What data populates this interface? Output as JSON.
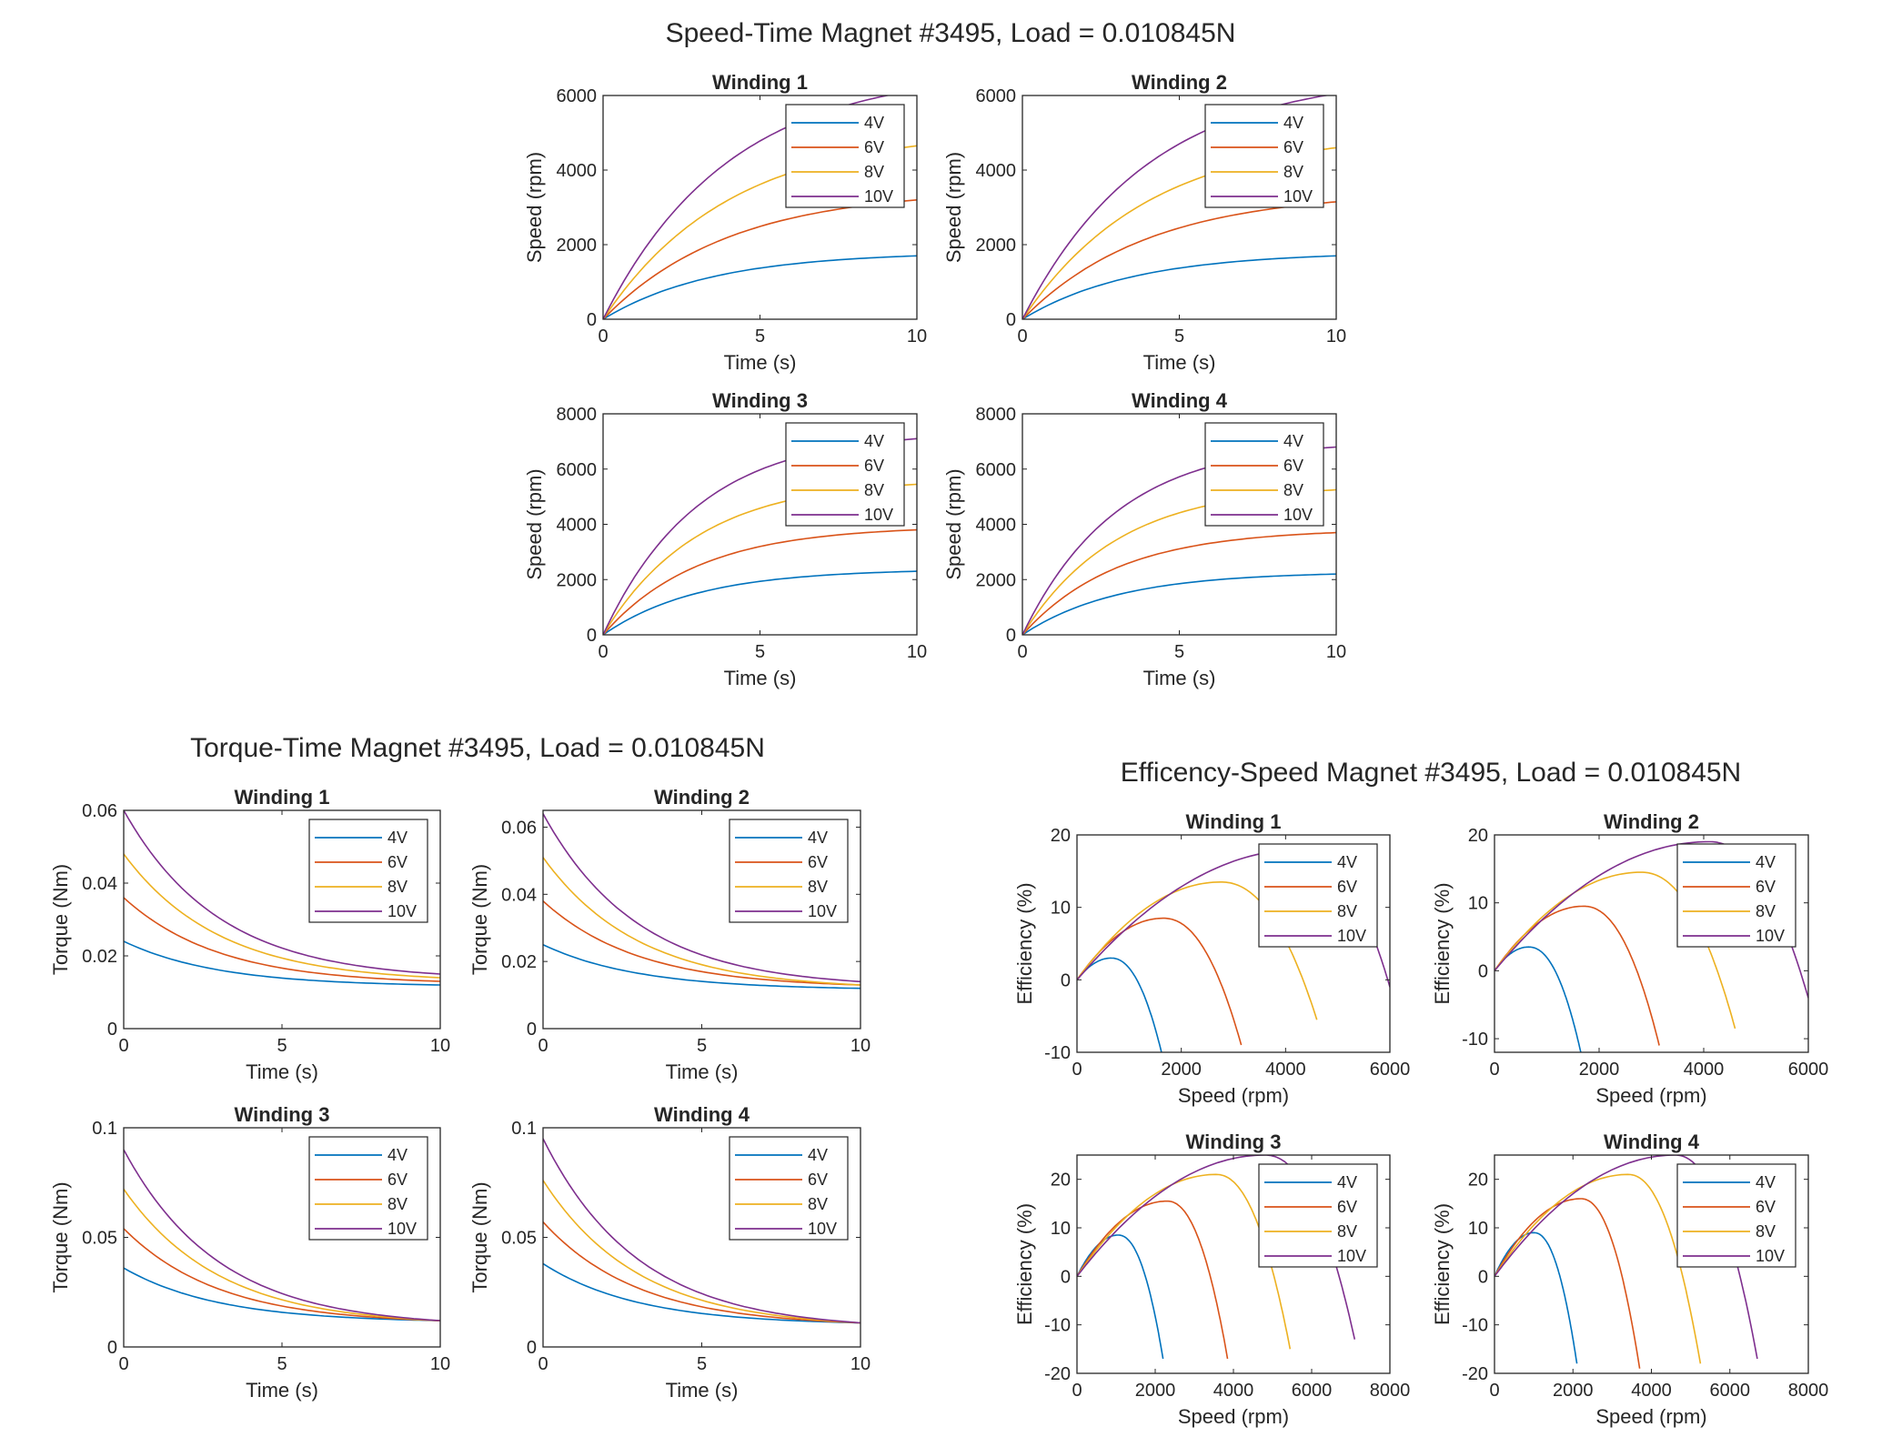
{
  "colors": {
    "4V": "#0072BD",
    "6V": "#D95319",
    "8V": "#EDB120",
    "10V": "#7E2F8E"
  },
  "legend_labels": [
    "4V",
    "6V",
    "8V",
    "10V"
  ],
  "figures": [
    {
      "title": "Speed-Time Magnet #3495, Load = 0.010845N",
      "kind": "speed_time",
      "xlabel": "Time (s)",
      "ylabel": "Speed (rpm)",
      "panels": [
        {
          "title": "Winding 1",
          "xlim": [
            0,
            10
          ],
          "ylim": [
            0,
            6000
          ],
          "xticks": [
            "0",
            "5",
            "10"
          ],
          "yticks": [
            "0",
            "2000",
            "4000",
            "6000"
          ],
          "series": [
            {
              "name": "4V",
              "final_rpm": 1700,
              "tau_s": 3.5
            },
            {
              "name": "6V",
              "final_rpm": 3200,
              "tau_s": 4.0
            },
            {
              "name": "8V",
              "final_rpm": 4650,
              "tau_s": 4.0
            },
            {
              "name": "10V",
              "final_rpm": 6150,
              "tau_s": 4.0
            }
          ]
        },
        {
          "title": "Winding 2",
          "xlim": [
            0,
            10
          ],
          "ylim": [
            0,
            6000
          ],
          "xticks": [
            "0",
            "5",
            "10"
          ],
          "yticks": [
            "0",
            "2000",
            "4000",
            "6000"
          ],
          "series": [
            {
              "name": "4V",
              "final_rpm": 1700,
              "tau_s": 3.5
            },
            {
              "name": "6V",
              "final_rpm": 3150,
              "tau_s": 4.0
            },
            {
              "name": "8V",
              "final_rpm": 4600,
              "tau_s": 4.0
            },
            {
              "name": "10V",
              "final_rpm": 6050,
              "tau_s": 4.0
            }
          ]
        },
        {
          "title": "Winding 3",
          "xlim": [
            0,
            10
          ],
          "ylim": [
            0,
            8000
          ],
          "xticks": [
            "0",
            "5",
            "10"
          ],
          "yticks": [
            "0",
            "2000",
            "4000",
            "6000",
            "8000"
          ],
          "series": [
            {
              "name": "4V",
              "final_rpm": 2300,
              "tau_s": 3.0
            },
            {
              "name": "6V",
              "final_rpm": 3800,
              "tau_s": 3.0
            },
            {
              "name": "8V",
              "final_rpm": 5450,
              "tau_s": 3.0
            },
            {
              "name": "10V",
              "final_rpm": 7100,
              "tau_s": 3.0
            }
          ]
        },
        {
          "title": "Winding 4",
          "xlim": [
            0,
            10
          ],
          "ylim": [
            0,
            8000
          ],
          "xticks": [
            "0",
            "5",
            "10"
          ],
          "yticks": [
            "0",
            "2000",
            "4000",
            "6000",
            "8000"
          ],
          "series": [
            {
              "name": "4V",
              "final_rpm": 2200,
              "tau_s": 3.0
            },
            {
              "name": "6V",
              "final_rpm": 3700,
              "tau_s": 3.0
            },
            {
              "name": "8V",
              "final_rpm": 5250,
              "tau_s": 3.0
            },
            {
              "name": "10V",
              "final_rpm": 6800,
              "tau_s": 3.0
            }
          ]
        }
      ]
    },
    {
      "title": "Torque-Time Magnet #3495, Load = 0.010845N",
      "kind": "torque_time",
      "xlabel": "Time (s)",
      "ylabel": "Torque (Nm)",
      "panels": [
        {
          "title": "Winding 1",
          "xlim": [
            0,
            10
          ],
          "ylim": [
            0,
            0.06
          ],
          "xticks": [
            "0",
            "5",
            "10"
          ],
          "yticks": [
            "0",
            "0.02",
            "0.04",
            "0.06"
          ],
          "series": [
            {
              "name": "4V",
              "t0_nm": 0.024,
              "t10_nm": 0.012
            },
            {
              "name": "6V",
              "t0_nm": 0.036,
              "t10_nm": 0.013
            },
            {
              "name": "8V",
              "t0_nm": 0.048,
              "t10_nm": 0.014
            },
            {
              "name": "10V",
              "t0_nm": 0.06,
              "t10_nm": 0.015
            }
          ]
        },
        {
          "title": "Winding 2",
          "xlim": [
            0,
            10
          ],
          "ylim": [
            0,
            0.065
          ],
          "xticks": [
            "0",
            "5",
            "10"
          ],
          "yticks": [
            "0",
            "0.02",
            "0.04",
            "0.06"
          ],
          "series": [
            {
              "name": "4V",
              "t0_nm": 0.025,
              "t10_nm": 0.012
            },
            {
              "name": "6V",
              "t0_nm": 0.038,
              "t10_nm": 0.013
            },
            {
              "name": "8V",
              "t0_nm": 0.051,
              "t10_nm": 0.013
            },
            {
              "name": "10V",
              "t0_nm": 0.064,
              "t10_nm": 0.014
            }
          ]
        },
        {
          "title": "Winding 3",
          "xlim": [
            0,
            10
          ],
          "ylim": [
            0,
            0.1
          ],
          "xticks": [
            "0",
            "5",
            "10"
          ],
          "yticks": [
            "0",
            "0.05",
            "0.1"
          ],
          "series": [
            {
              "name": "4V",
              "t0_nm": 0.036,
              "t10_nm": 0.012
            },
            {
              "name": "6V",
              "t0_nm": 0.054,
              "t10_nm": 0.012
            },
            {
              "name": "8V",
              "t0_nm": 0.072,
              "t10_nm": 0.012
            },
            {
              "name": "10V",
              "t0_nm": 0.09,
              "t10_nm": 0.012
            }
          ]
        },
        {
          "title": "Winding 4",
          "xlim": [
            0,
            10
          ],
          "ylim": [
            0,
            0.1
          ],
          "xticks": [
            "0",
            "5",
            "10"
          ],
          "yticks": [
            "0",
            "0.05",
            "0.1"
          ],
          "series": [
            {
              "name": "4V",
              "t0_nm": 0.038,
              "t10_nm": 0.011
            },
            {
              "name": "6V",
              "t0_nm": 0.057,
              "t10_nm": 0.011
            },
            {
              "name": "8V",
              "t0_nm": 0.076,
              "t10_nm": 0.011
            },
            {
              "name": "10V",
              "t0_nm": 0.095,
              "t10_nm": 0.011
            }
          ]
        }
      ]
    },
    {
      "title": "Efficency-Speed Magnet #3495, Load = 0.010845N",
      "kind": "efficiency_speed",
      "xlabel": "Speed (rpm)",
      "ylabel": "Efficiency (%)",
      "panels": [
        {
          "title": "Winding 1",
          "xlim": [
            0,
            6000
          ],
          "ylim": [
            -10,
            20
          ],
          "xticks": [
            "0",
            "2000",
            "4000",
            "6000"
          ],
          "yticks": [
            "-10",
            "0",
            "10",
            "20"
          ],
          "series": [
            {
              "name": "4V",
              "peak_rpm": 650,
              "peak_eff": 3,
              "end_rpm": 1620,
              "end_eff": -10
            },
            {
              "name": "6V",
              "peak_rpm": 1650,
              "peak_eff": 8.5,
              "end_rpm": 3150,
              "end_eff": -9
            },
            {
              "name": "8V",
              "peak_rpm": 2750,
              "peak_eff": 13.5,
              "end_rpm": 4600,
              "end_eff": -5.5
            },
            {
              "name": "10V",
              "peak_rpm": 4300,
              "peak_eff": 18,
              "end_rpm": 6000,
              "end_eff": -1
            }
          ]
        },
        {
          "title": "Winding 2",
          "xlim": [
            0,
            6000
          ],
          "ylim": [
            -12,
            20
          ],
          "xticks": [
            "0",
            "2000",
            "4000",
            "6000"
          ],
          "yticks": [
            "-10",
            "0",
            "10",
            "20"
          ],
          "series": [
            {
              "name": "4V",
              "peak_rpm": 650,
              "peak_eff": 3.5,
              "end_rpm": 1650,
              "end_eff": -12
            },
            {
              "name": "6V",
              "peak_rpm": 1700,
              "peak_eff": 9.5,
              "end_rpm": 3150,
              "end_eff": -11
            },
            {
              "name": "8V",
              "peak_rpm": 2800,
              "peak_eff": 14.5,
              "end_rpm": 4600,
              "end_eff": -8.5
            },
            {
              "name": "10V",
              "peak_rpm": 4100,
              "peak_eff": 19,
              "end_rpm": 6000,
              "end_eff": -4
            }
          ]
        },
        {
          "title": "Winding 3",
          "xlim": [
            0,
            8000
          ],
          "ylim": [
            -20,
            25
          ],
          "xticks": [
            "0",
            "2000",
            "4000",
            "6000",
            "8000"
          ],
          "yticks": [
            "-20",
            "-10",
            "0",
            "10",
            "20"
          ],
          "series": [
            {
              "name": "4V",
              "peak_rpm": 1050,
              "peak_eff": 8.5,
              "end_rpm": 2200,
              "end_eff": -17
            },
            {
              "name": "6V",
              "peak_rpm": 2300,
              "peak_eff": 15.5,
              "end_rpm": 3850,
              "end_eff": -17
            },
            {
              "name": "8V",
              "peak_rpm": 3550,
              "peak_eff": 21,
              "end_rpm": 5450,
              "end_eff": -15
            },
            {
              "name": "10V",
              "peak_rpm": 4800,
              "peak_eff": 25,
              "end_rpm": 7100,
              "end_eff": -13
            }
          ]
        },
        {
          "title": "Winding 4",
          "xlim": [
            0,
            8000
          ],
          "ylim": [
            -20,
            25
          ],
          "xticks": [
            "0",
            "2000",
            "4000",
            "6000",
            "8000"
          ],
          "yticks": [
            "-20",
            "-10",
            "0",
            "10",
            "20"
          ],
          "series": [
            {
              "name": "4V",
              "peak_rpm": 1000,
              "peak_eff": 9,
              "end_rpm": 2100,
              "end_eff": -18
            },
            {
              "name": "6V",
              "peak_rpm": 2200,
              "peak_eff": 16,
              "end_rpm": 3700,
              "end_eff": -19
            },
            {
              "name": "8V",
              "peak_rpm": 3400,
              "peak_eff": 21,
              "end_rpm": 5250,
              "end_eff": -18
            },
            {
              "name": "10V",
              "peak_rpm": 4600,
              "peak_eff": 25,
              "end_rpm": 6700,
              "end_eff": -17
            }
          ]
        }
      ]
    }
  ],
  "chart_data": [
    {
      "type": "line",
      "title": "Speed-Time Magnet #3495, Load = 0.010845N",
      "subtitle": "Winding 1",
      "xlabel": "Time (s)",
      "ylabel": "Speed (rpm)",
      "xlim": [
        0,
        10
      ],
      "ylim": [
        0,
        6000
      ],
      "x": [
        0,
        2,
        4,
        6,
        8,
        10
      ],
      "series": [
        {
          "name": "4V",
          "values": [
            0,
            745,
            1163,
            1398,
            1530,
            1604
          ]
        },
        {
          "name": "6V",
          "values": [
            0,
            1292,
            2150,
            2719,
            3097,
            3348
          ]
        },
        {
          "name": "8V",
          "values": [
            0,
            1877,
            3124,
            3951,
            4500,
            4865
          ]
        },
        {
          "name": "10V",
          "values": [
            0,
            2483,
            4132,
            5226,
            5952,
            6434
          ]
        }
      ]
    },
    {
      "type": "line",
      "title": "Torque-Time Magnet #3495, Load = 0.010845N",
      "subtitle": "Winding 1",
      "xlabel": "Time (s)",
      "ylabel": "Torque (Nm)",
      "xlim": [
        0,
        10
      ],
      "ylim": [
        0,
        0.06
      ],
      "x": [
        0,
        5,
        10
      ],
      "series": [
        {
          "name": "4V",
          "values": [
            0.024,
            0.015,
            0.012
          ]
        },
        {
          "name": "6V",
          "values": [
            0.036,
            0.018,
            0.013
          ]
        },
        {
          "name": "8V",
          "values": [
            0.048,
            0.021,
            0.014
          ]
        },
        {
          "name": "10V",
          "values": [
            0.06,
            0.025,
            0.015
          ]
        }
      ]
    },
    {
      "type": "line",
      "title": "Efficency-Speed Magnet #3495, Load = 0.010845N",
      "subtitle": "Winding 1",
      "xlabel": "Speed (rpm)",
      "ylabel": "Efficiency (%)",
      "xlim": [
        0,
        6000
      ],
      "ylim": [
        -10,
        20
      ],
      "series": [
        {
          "name": "4V",
          "peak": [
            650,
            3
          ],
          "end": [
            1620,
            -10
          ]
        },
        {
          "name": "6V",
          "peak": [
            1650,
            8.5
          ],
          "end": [
            3150,
            -9
          ]
        },
        {
          "name": "8V",
          "peak": [
            2750,
            13.5
          ],
          "end": [
            4600,
            -5.5
          ]
        },
        {
          "name": "10V",
          "peak": [
            4300,
            18
          ],
          "end": [
            6000,
            -1
          ]
        }
      ]
    }
  ]
}
